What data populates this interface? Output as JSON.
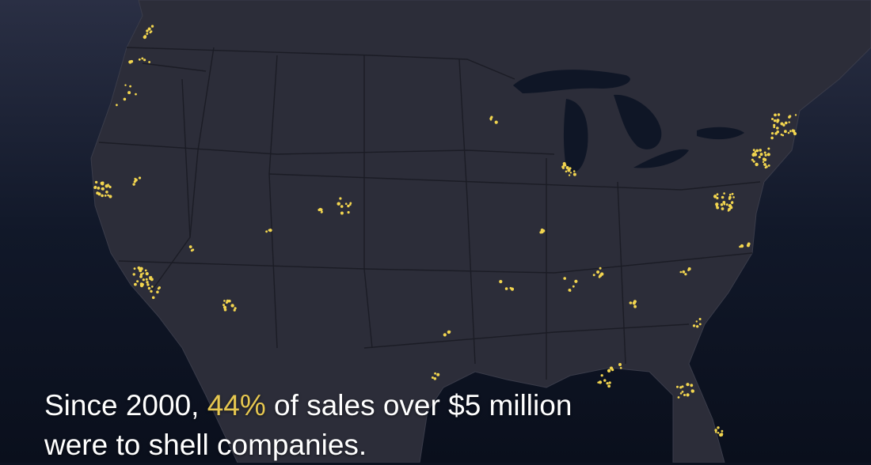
{
  "caption": {
    "line1_before": "Since 2000, ",
    "highlight": "44%",
    "line1_after": " of sales over $5 million",
    "line2": "were to shell companies."
  }
}
